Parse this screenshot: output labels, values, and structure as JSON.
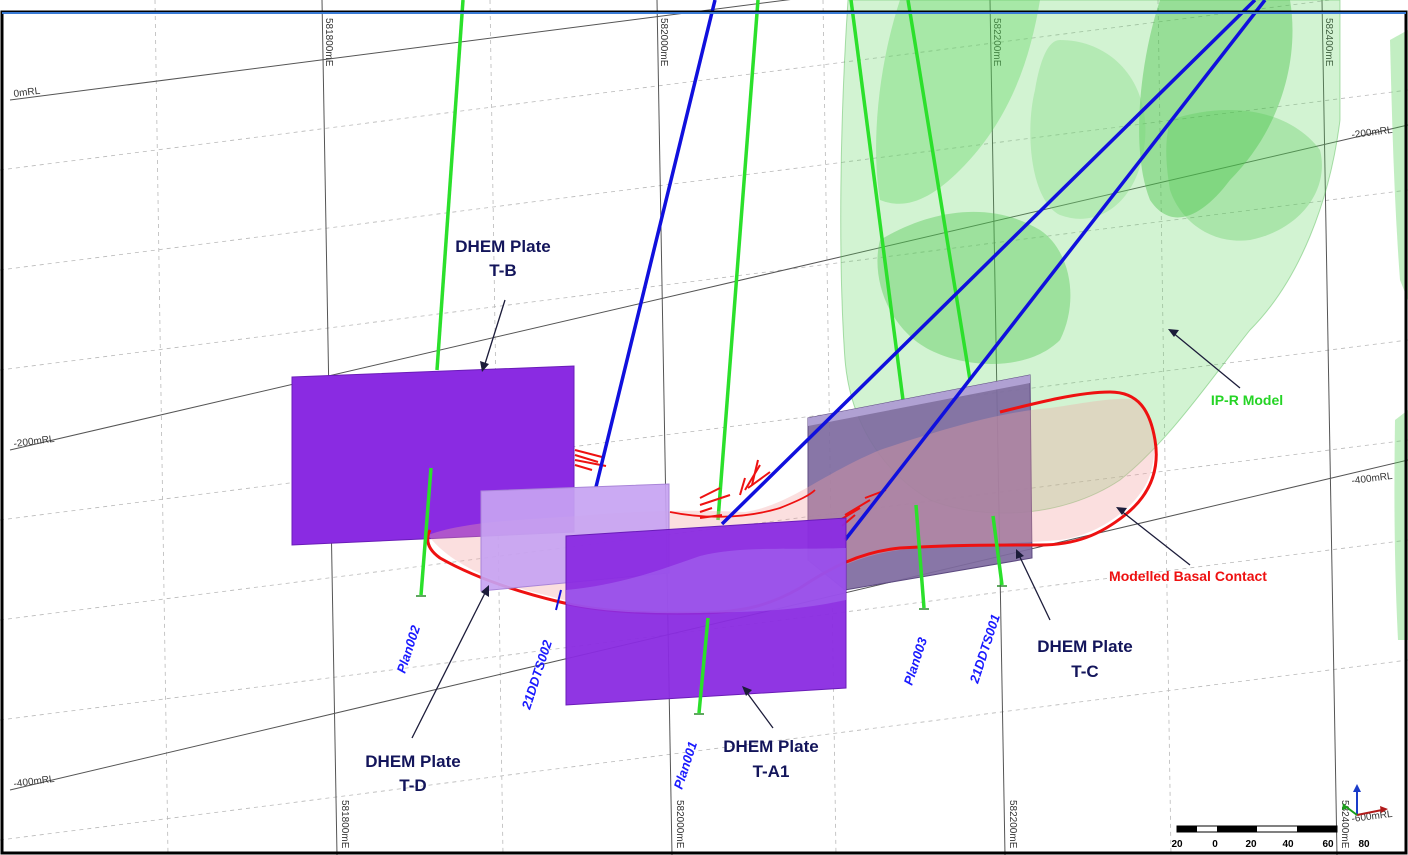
{
  "grid": {
    "easting_top": [
      "581800mE",
      "582000mE",
      "582200mE",
      "582400mE"
    ],
    "easting_bottom": [
      "581800mE",
      "582000mE",
      "582200mE",
      "582400mE"
    ],
    "rl_left": [
      "0mRL",
      "-200mRL",
      "-400mRL"
    ],
    "rl_right": [
      "-200mRL",
      "-400mRL",
      "-600mRL"
    ]
  },
  "plates": {
    "tb": {
      "line1": "DHEM Plate",
      "line2": "T-B"
    },
    "td": {
      "line1": "DHEM Plate",
      "line2": "T-D"
    },
    "ta1": {
      "line1": "DHEM Plate",
      "line2": "T-A1"
    },
    "tc": {
      "line1": "DHEM Plate",
      "line2": "T-C"
    }
  },
  "holes": [
    "Plan002",
    "21DDTS002",
    "Plan001",
    "Plan003",
    "21DDTS001"
  ],
  "annotations": {
    "ipr_model": "IP-R Model",
    "basal_contact": "Modelled Basal Contact"
  },
  "scale_bar": {
    "ticks": [
      "20",
      "0",
      "20",
      "40",
      "60",
      "80"
    ]
  },
  "colors": {
    "plate_purple": "#8a2be2",
    "plate_light": "#c7a3f2",
    "plate_grey": "#8a7aa8",
    "ipr_green": "#5fd35f",
    "basal_red": "#ee1111",
    "drill_green": "#2be02b",
    "drill_blue": "#1010dd",
    "label_navy": "#13155b"
  },
  "icons": [
    "axis-triad-icon"
  ]
}
